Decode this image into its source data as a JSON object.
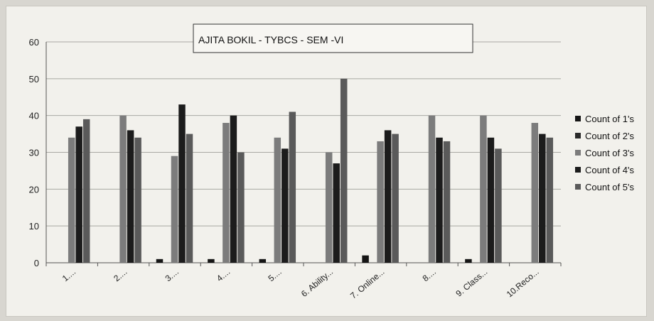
{
  "chart_data": {
    "type": "bar",
    "title": "AJITA BOKIL - TYBCS - SEM -VI",
    "categories": [
      "1....",
      "2....",
      "3....",
      "4....",
      "5....",
      "6. Ability...",
      "7. Online...",
      "8....",
      "9. Class...",
      "10.Reco..."
    ],
    "series": [
      {
        "name": "Count of 1's",
        "color": "#151515",
        "values": [
          0,
          0,
          1,
          1,
          1,
          0,
          2,
          0,
          1,
          0
        ]
      },
      {
        "name": "Count of 2's",
        "color": "#2a2a2a",
        "values": [
          0,
          0,
          0,
          0,
          0,
          0,
          0,
          0,
          0,
          0
        ]
      },
      {
        "name": "Count of 3's",
        "color": "#7c7c7c",
        "values": [
          34,
          40,
          29,
          38,
          34,
          30,
          33,
          40,
          40,
          38
        ]
      },
      {
        "name": "Count of 4's",
        "color": "#1c1c1c",
        "values": [
          37,
          36,
          43,
          40,
          31,
          27,
          36,
          34,
          34,
          35
        ]
      },
      {
        "name": "Count of 5's",
        "color": "#5a5a5a",
        "values": [
          39,
          34,
          35,
          30,
          41,
          50,
          35,
          33,
          31,
          34
        ]
      }
    ],
    "ylim": [
      0,
      60
    ],
    "yticks": [
      0,
      10,
      20,
      30,
      40,
      50,
      60
    ],
    "grid": true,
    "legend_position": "right"
  }
}
